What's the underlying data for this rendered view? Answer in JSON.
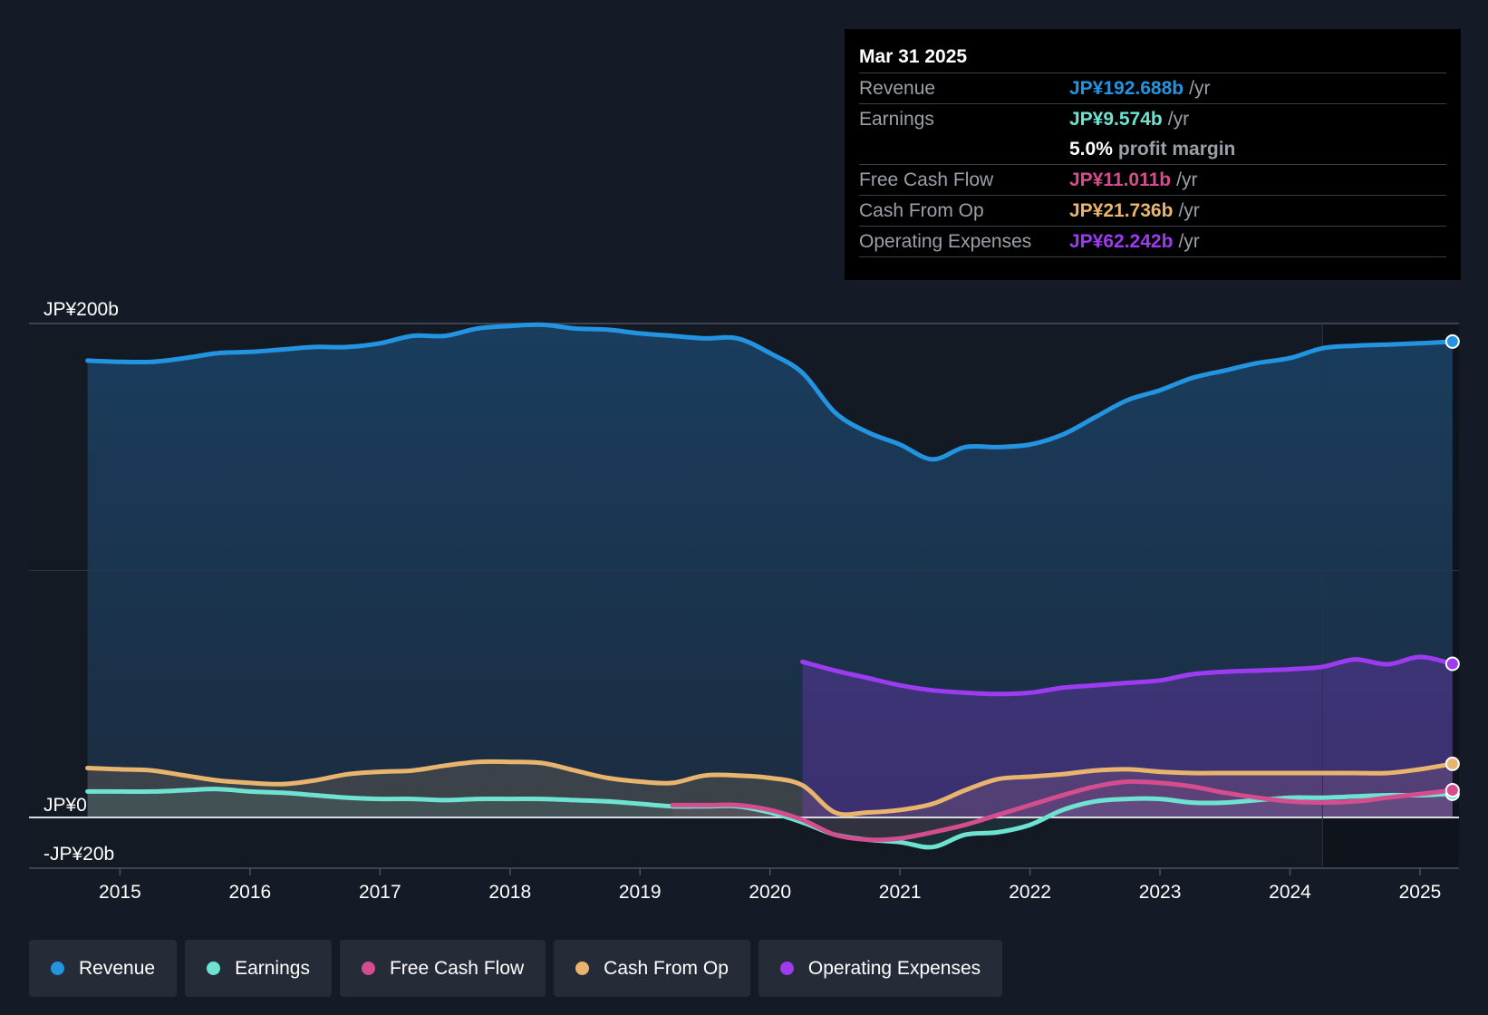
{
  "tooltip": {
    "date": "Mar 31 2025",
    "revenue": {
      "label": "Revenue",
      "value": "JP¥192.688b",
      "unit": "/yr"
    },
    "earnings": {
      "label": "Earnings",
      "value": "JP¥9.574b",
      "unit": "/yr"
    },
    "margin": {
      "value": "5.0%",
      "label": "profit margin"
    },
    "fcf": {
      "label": "Free Cash Flow",
      "value": "JP¥11.011b",
      "unit": "/yr"
    },
    "cfo": {
      "label": "Cash From Op",
      "value": "JP¥21.736b",
      "unit": "/yr"
    },
    "opex": {
      "label": "Operating Expenses",
      "value": "JP¥62.242b",
      "unit": "/yr"
    }
  },
  "legend": [
    {
      "label": "Revenue",
      "color": "#2394df"
    },
    {
      "label": "Earnings",
      "color": "#6fe3d2"
    },
    {
      "label": "Free Cash Flow",
      "color": "#d44d8f"
    },
    {
      "label": "Cash From Op",
      "color": "#e8b46e"
    },
    {
      "label": "Operating Expenses",
      "color": "#9d3bf0"
    }
  ],
  "chart_data": {
    "type": "line",
    "y_labels": [
      "JP¥200b",
      "JP¥0",
      "-JP¥20b"
    ],
    "ylim": [
      -20,
      200
    ],
    "xlim": [
      2014.3,
      2025.3
    ],
    "x_ticks": [
      "2015",
      "2016",
      "2017",
      "2018",
      "2019",
      "2020",
      "2021",
      "2022",
      "2023",
      "2024",
      "2025"
    ],
    "x_tick_values": [
      2015,
      2016,
      2017,
      2018,
      2019,
      2020,
      2021,
      2022,
      2023,
      2024,
      2025
    ],
    "forecast_start": 2024.25,
    "series": [
      {
        "name": "Revenue",
        "color": "#2394df",
        "x": [
          2014.75,
          2015.0,
          2015.25,
          2015.5,
          2015.75,
          2016.0,
          2016.25,
          2016.5,
          2016.75,
          2017.0,
          2017.25,
          2017.5,
          2017.75,
          2018.0,
          2018.25,
          2018.5,
          2018.75,
          2019.0,
          2019.25,
          2019.5,
          2019.75,
          2020.0,
          2020.25,
          2020.5,
          2020.75,
          2021.0,
          2021.25,
          2021.5,
          2021.75,
          2022.0,
          2022.25,
          2022.5,
          2022.75,
          2023.0,
          2023.25,
          2023.5,
          2023.75,
          2024.0,
          2024.25,
          2024.5,
          2024.75,
          2025.0,
          2025.25
        ],
        "values": [
          185,
          184.5,
          184.5,
          186,
          188,
          188.5,
          189.5,
          190.5,
          190.5,
          192,
          195,
          195,
          198,
          199,
          199.5,
          198,
          197.5,
          196,
          195,
          194,
          194,
          188,
          180,
          164,
          156,
          151,
          145,
          150,
          150,
          151,
          155,
          162,
          169,
          173,
          178,
          181,
          184,
          186,
          190,
          191,
          191.5,
          192,
          192.7
        ]
      },
      {
        "name": "Earnings",
        "color": "#6fe3d2",
        "x": [
          2014.75,
          2015.0,
          2015.25,
          2015.5,
          2015.75,
          2016.0,
          2016.25,
          2016.5,
          2016.75,
          2017.0,
          2017.25,
          2017.5,
          2017.75,
          2018.0,
          2018.25,
          2018.5,
          2018.75,
          2019.0,
          2019.25,
          2019.5,
          2019.75,
          2020.0,
          2020.25,
          2020.5,
          2020.75,
          2021.0,
          2021.25,
          2021.5,
          2021.75,
          2022.0,
          2022.25,
          2022.5,
          2022.75,
          2023.0,
          2023.25,
          2023.5,
          2023.75,
          2024.0,
          2024.25,
          2024.5,
          2024.75,
          2025.0,
          2025.25
        ],
        "values": [
          10.5,
          10.5,
          10.5,
          11,
          11.5,
          10.5,
          10,
          9,
          8,
          7.5,
          7.5,
          7,
          7.5,
          7.5,
          7.5,
          7,
          6.5,
          5.5,
          4.5,
          4.5,
          4.5,
          2,
          -2,
          -7,
          -9,
          -10,
          -12,
          -7,
          -6,
          -3,
          3,
          6.5,
          7.5,
          7.5,
          6,
          6,
          7,
          8,
          8,
          8.5,
          9,
          9,
          9.6
        ]
      },
      {
        "name": "Free Cash Flow",
        "color": "#d44d8f",
        "x": [
          2019.25,
          2019.5,
          2019.75,
          2020.0,
          2020.25,
          2020.5,
          2020.75,
          2021.0,
          2021.25,
          2021.5,
          2021.75,
          2022.0,
          2022.25,
          2022.5,
          2022.75,
          2023.0,
          2023.25,
          2023.5,
          2023.75,
          2024.0,
          2024.25,
          2024.5,
          2024.75,
          2025.0,
          2025.25
        ],
        "values": [
          5,
          5,
          5,
          3,
          -1,
          -7,
          -9,
          -8.5,
          -6,
          -3,
          1,
          5,
          9,
          12.5,
          14.5,
          14,
          12.5,
          10,
          8,
          6.5,
          6,
          6.5,
          8,
          9.5,
          11
        ]
      },
      {
        "name": "Cash From Op",
        "color": "#e8b46e",
        "x": [
          2014.75,
          2015.0,
          2015.25,
          2015.5,
          2015.75,
          2016.0,
          2016.25,
          2016.5,
          2016.75,
          2017.0,
          2017.25,
          2017.5,
          2017.75,
          2018.0,
          2018.25,
          2018.5,
          2018.75,
          2019.0,
          2019.25,
          2019.5,
          2019.75,
          2020.0,
          2020.25,
          2020.5,
          2020.75,
          2021.0,
          2021.25,
          2021.5,
          2021.75,
          2022.0,
          2022.25,
          2022.5,
          2022.75,
          2023.0,
          2023.25,
          2023.5,
          2023.75,
          2024.0,
          2024.25,
          2024.5,
          2024.75,
          2025.0,
          2025.25
        ],
        "values": [
          20,
          19.5,
          19,
          17,
          15,
          14,
          13.5,
          15,
          17.5,
          18.5,
          19,
          21,
          22.5,
          22.5,
          22,
          19,
          16,
          14.5,
          14,
          17,
          17,
          16,
          13,
          2,
          2,
          3,
          5.5,
          11,
          15.5,
          16.5,
          17.5,
          19,
          19.5,
          18.5,
          18,
          18,
          18,
          18,
          18,
          18,
          18,
          19.5,
          21.7
        ]
      },
      {
        "name": "Operating Expenses",
        "color": "#9d3bf0",
        "x": [
          2020.25,
          2020.5,
          2020.75,
          2021.0,
          2021.25,
          2021.5,
          2021.75,
          2022.0,
          2022.25,
          2022.5,
          2022.75,
          2023.0,
          2023.25,
          2023.5,
          2023.75,
          2024.0,
          2024.25,
          2024.5,
          2024.75,
          2025.0,
          2025.25
        ],
        "values": [
          63,
          59.5,
          56.5,
          53.5,
          51.5,
          50.5,
          50,
          50.5,
          52.5,
          53.5,
          54.5,
          55.5,
          58,
          59,
          59.5,
          60,
          61,
          64,
          62,
          65,
          62.2
        ]
      }
    ]
  }
}
